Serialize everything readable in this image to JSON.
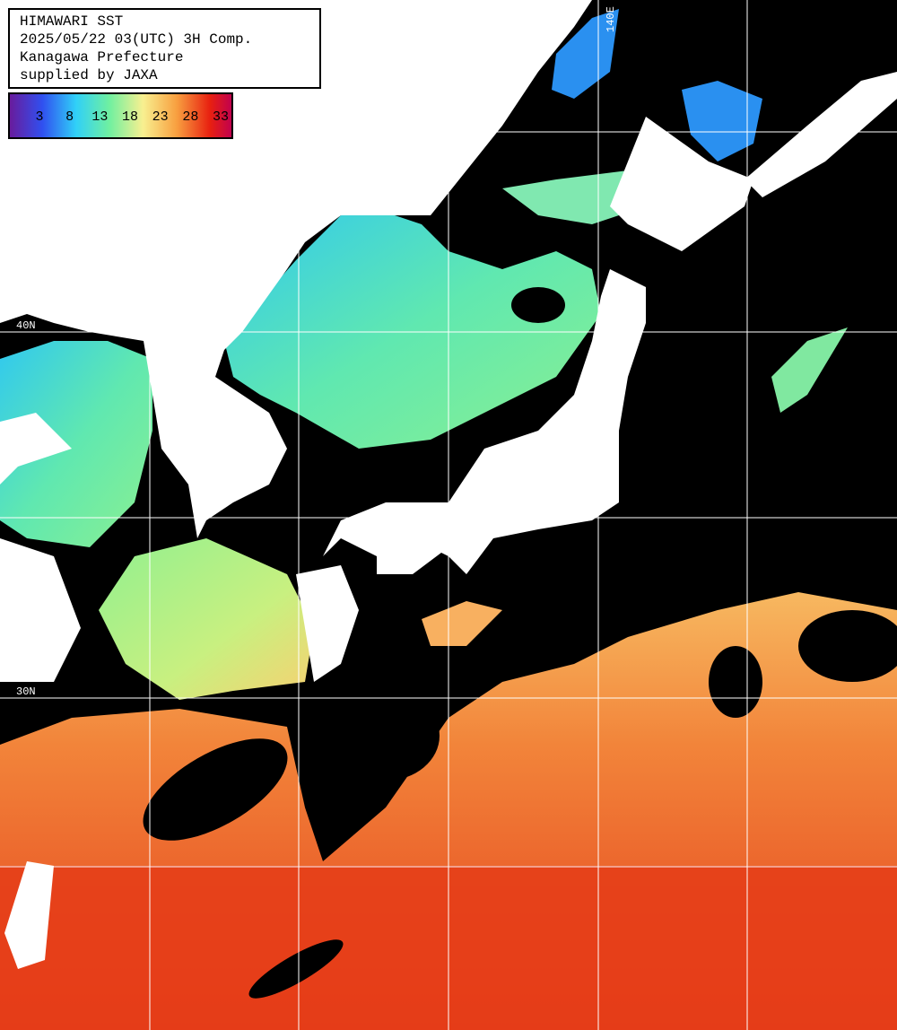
{
  "header": {
    "lines": [
      "HIMAWARI SST",
      "2025/05/22 03(UTC) 3H Comp.",
      "Kanagawa Prefecture",
      "supplied by JAXA"
    ]
  },
  "legend": {
    "ticks": [
      3,
      8,
      13,
      18,
      23,
      28,
      33
    ]
  },
  "grid_labels": {
    "lat": [
      "40N",
      "30N"
    ],
    "lon": [
      "140E"
    ]
  }
}
